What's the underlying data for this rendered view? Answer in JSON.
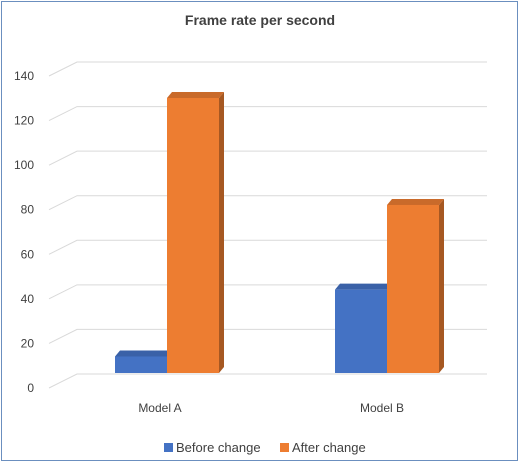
{
  "chart_data": {
    "type": "bar",
    "title": "Frame rate per second",
    "categories": [
      "Model A",
      "Model B"
    ],
    "series": [
      {
        "name": "Before change",
        "values": [
          11,
          41
        ],
        "color": "#4472c4"
      },
      {
        "name": "After change",
        "values": [
          127,
          79
        ],
        "color": "#ed7d31"
      }
    ],
    "ylim": [
      0,
      140
    ],
    "yticks": [
      0,
      20,
      40,
      60,
      80,
      100,
      120,
      140
    ],
    "grid": true,
    "legend": "bottom",
    "style": "3d-column"
  }
}
